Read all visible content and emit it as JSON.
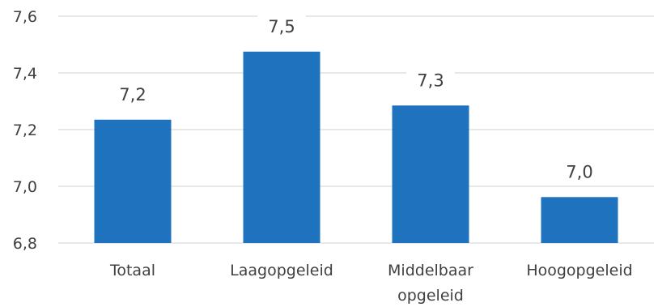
{
  "chart_data": {
    "type": "bar",
    "title": "",
    "xlabel": "",
    "ylabel": "",
    "categories": [
      [
        "Totaal"
      ],
      [
        "Laagopgeleid"
      ],
      [
        "Middelbaar",
        "opgeleid"
      ],
      [
        "Hoogopgeleid"
      ]
    ],
    "values": [
      7.235,
      7.475,
      7.285,
      6.962
    ],
    "data_labels": [
      "7,2",
      "7,5",
      "7,3",
      "7,0"
    ],
    "ylim": [
      6.8,
      7.6
    ],
    "yticks": [
      6.8,
      7.0,
      7.2,
      7.4,
      7.6
    ],
    "ytick_labels": [
      "6,8",
      "7,0",
      "7,2",
      "7,4",
      "7,6"
    ],
    "grid": true,
    "legend": "none",
    "bar_color": "#1f72bd"
  }
}
